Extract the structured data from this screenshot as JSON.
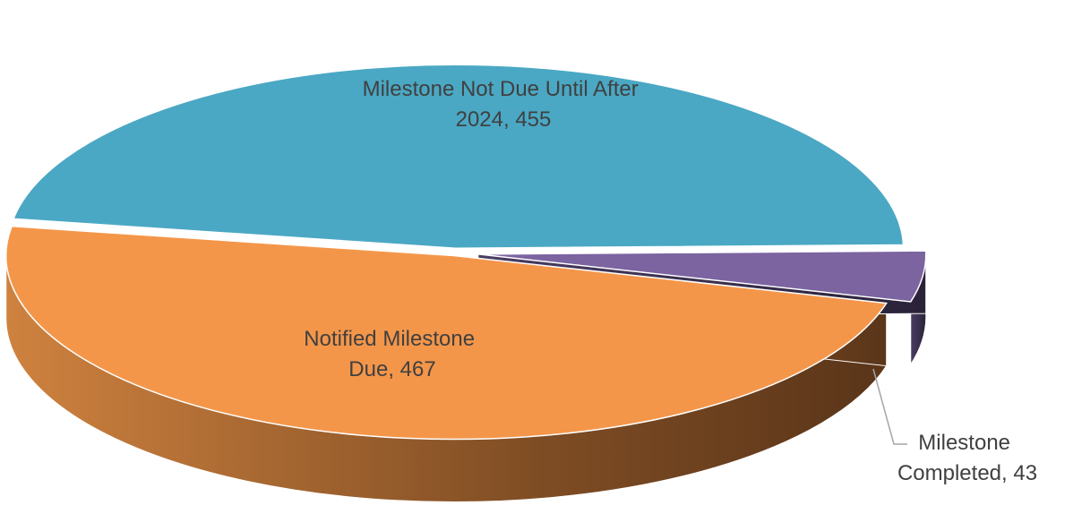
{
  "chart_data": {
    "type": "pie",
    "labels": [
      "Notified Milestone Due, 467",
      "Milestone Not Due Until After 2024, 455",
      "Milestone Completed, 43"
    ],
    "values": [
      467,
      455,
      43
    ],
    "colors": [
      "#f4964a",
      "#4aa8c4",
      "#7b64a0"
    ]
  }
}
